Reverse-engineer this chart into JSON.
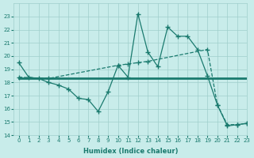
{
  "line1_x": [
    0,
    1,
    2,
    3,
    4,
    5,
    6,
    7,
    8,
    9,
    10,
    11,
    12,
    13,
    14,
    15,
    16,
    17,
    18,
    19,
    20,
    21,
    22,
    23
  ],
  "line1_y": [
    19.5,
    18.4,
    18.3,
    18.0,
    17.8,
    17.5,
    16.8,
    16.7,
    15.8,
    17.3,
    19.3,
    18.4,
    23.2,
    20.3,
    19.2,
    22.2,
    21.5,
    21.5,
    20.5,
    18.5,
    16.3,
    14.7,
    14.8,
    14.9
  ],
  "line2_x": [
    0,
    23
  ],
  "line2_y": [
    18.3,
    18.3
  ],
  "line3_x": [
    0,
    3,
    10,
    11,
    12,
    13,
    19,
    20,
    21,
    22,
    23
  ],
  "line3_y": [
    18.4,
    18.3,
    19.3,
    19.4,
    19.5,
    19.6,
    20.5,
    16.3,
    14.8,
    14.8,
    14.9
  ],
  "color": "#1a7a6e",
  "bg_color": "#c8ecea",
  "grid_color": "#9fcfcb",
  "xlabel": "Humidex (Indice chaleur)",
  "ylim": [
    14,
    24
  ],
  "xlim": [
    -0.5,
    23
  ],
  "yticks": [
    14,
    15,
    16,
    17,
    18,
    19,
    20,
    21,
    22,
    23
  ],
  "xticks": [
    0,
    1,
    2,
    3,
    4,
    5,
    6,
    7,
    8,
    9,
    10,
    11,
    12,
    13,
    14,
    15,
    16,
    17,
    18,
    19,
    20,
    21,
    22,
    23
  ]
}
